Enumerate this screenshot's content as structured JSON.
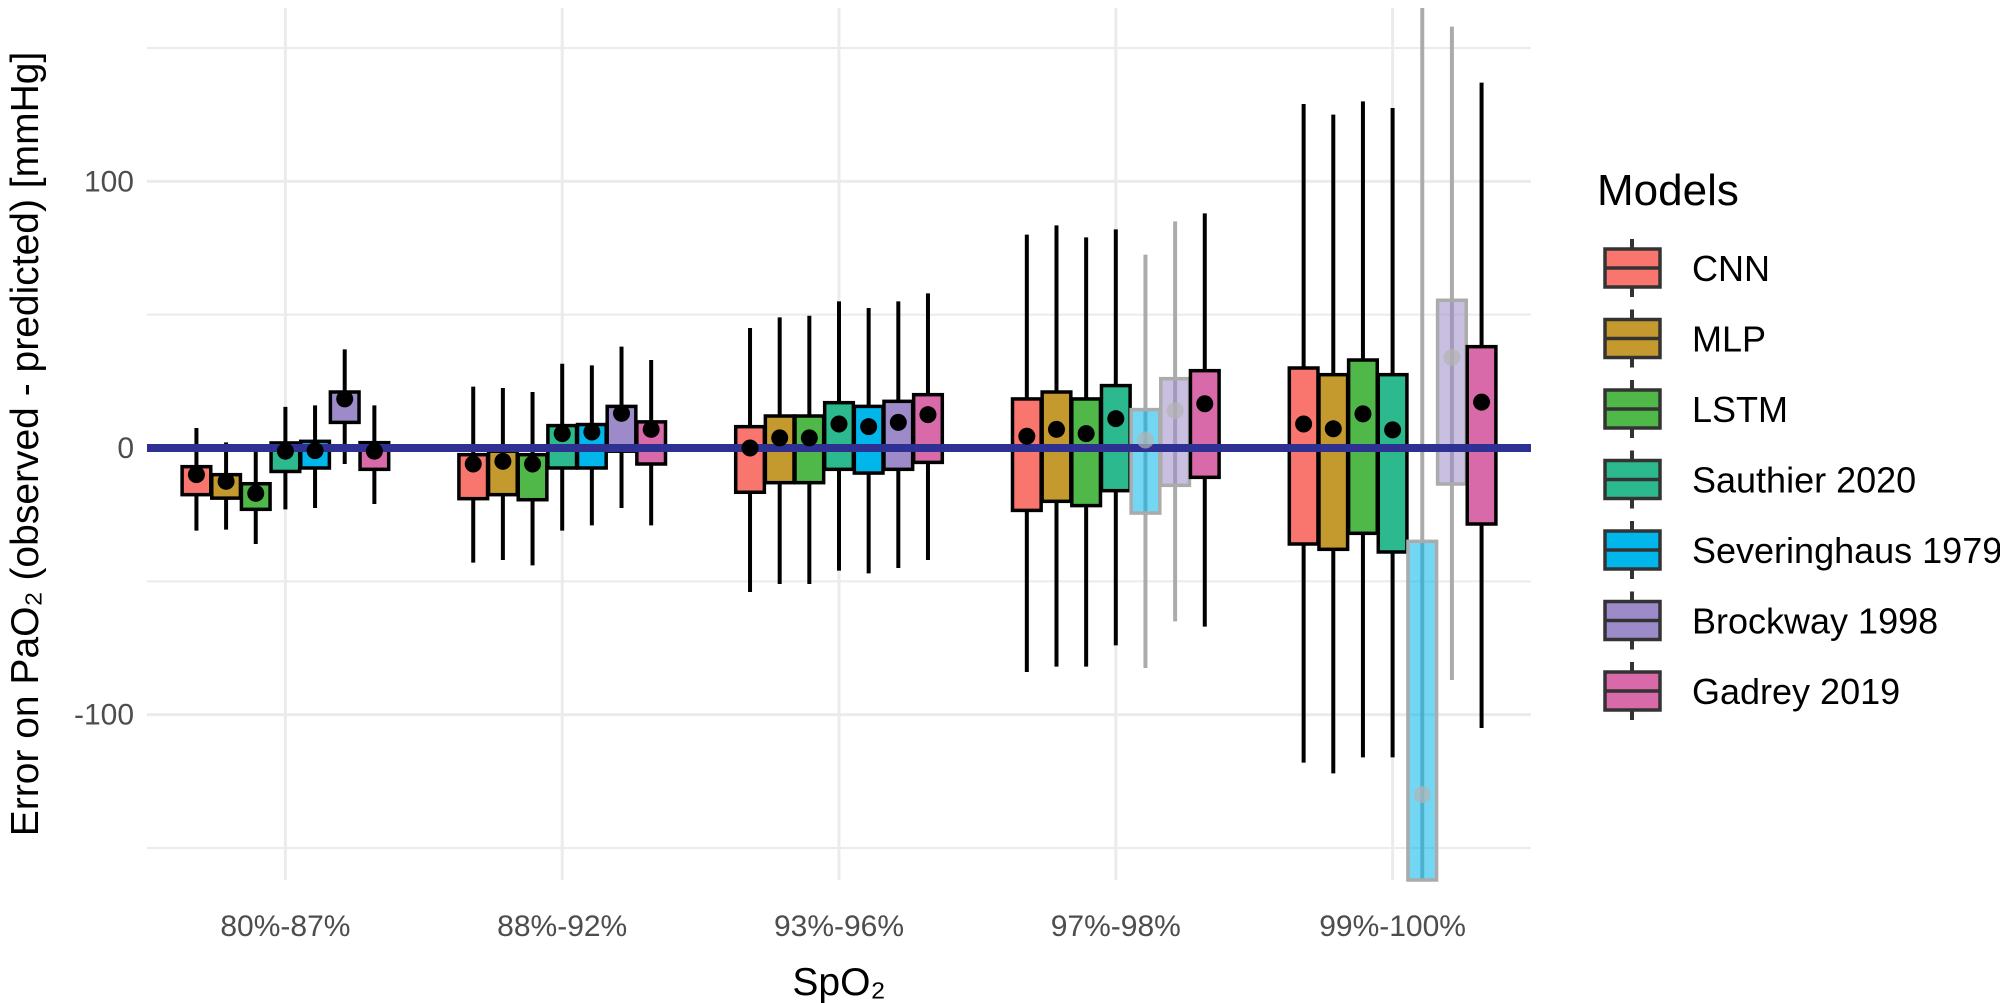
{
  "chart_data": {
    "type": "boxplot",
    "title": "",
    "xlabel": "SpO₂",
    "ylabel": "Error on PaO₂ (observed - predicted) [mmHg]",
    "ylim": [
      -162,
      165
    ],
    "yticks": [
      -100,
      0,
      100
    ],
    "grid": true,
    "reference_line": {
      "y": 0,
      "color": "#2e3192"
    },
    "legend": {
      "title": "Models",
      "placement": "right"
    },
    "categories": [
      "80%-87%",
      "88%-92%",
      "93%-96%",
      "97%-98%",
      "99%-100%"
    ],
    "stat_fields": [
      "low",
      "q1",
      "q3",
      "high",
      "mean"
    ],
    "series": [
      {
        "name": "CNN",
        "color": "#f8766d",
        "boxes": [
          [
            -31,
            -17.5,
            -7,
            7.5,
            -10
          ],
          [
            -43,
            -19,
            -2.5,
            23,
            -6
          ],
          [
            -54,
            -16.6,
            8,
            45,
            0
          ],
          [
            -84,
            -23.4,
            18.4,
            80,
            4.4
          ],
          [
            -118,
            -36,
            30,
            129,
            9
          ]
        ],
        "faded": [
          false,
          false,
          false,
          false,
          false
        ]
      },
      {
        "name": "MLP",
        "color": "#c49a2e",
        "boxes": [
          [
            -30.6,
            -18.8,
            -10,
            2.1,
            -12.5
          ],
          [
            -42,
            -17.5,
            -1.2,
            22.5,
            -5
          ],
          [
            -51,
            -13,
            12,
            49,
            3.8
          ],
          [
            -82,
            -20,
            21,
            83.5,
            7
          ],
          [
            -122,
            -38,
            27.5,
            125,
            7.2
          ]
        ],
        "faded": [
          false,
          false,
          false,
          false,
          false
        ]
      },
      {
        "name": "LSTM",
        "color": "#4fb848",
        "boxes": [
          [
            -36,
            -23,
            -13.4,
            -0.6,
            -17
          ],
          [
            -44,
            -19.4,
            -2.5,
            21,
            -6
          ],
          [
            -51,
            -13,
            12,
            49.6,
            3.8
          ],
          [
            -82,
            -21.6,
            18.4,
            79,
            5.4
          ],
          [
            -116,
            -32,
            33,
            130,
            12.8
          ]
        ],
        "faded": [
          false,
          false,
          false,
          false,
          false
        ]
      },
      {
        "name": "Sauthier 2020",
        "color": "#2db98e",
        "boxes": [
          [
            -23,
            -8.8,
            1.9,
            15.4,
            -1.2
          ],
          [
            -31,
            -7.5,
            8.4,
            31.6,
            5.4
          ],
          [
            -46,
            -8,
            17,
            55,
            9
          ],
          [
            -74,
            -16,
            23.4,
            82,
            11
          ],
          [
            -116,
            -39,
            27.5,
            127.5,
            6.8
          ]
        ],
        "faded": [
          false,
          false,
          false,
          false,
          false
        ]
      },
      {
        "name": "Severinghaus 1979",
        "color": "#00b6eb",
        "boxes": [
          [
            -22.5,
            -7.5,
            2.5,
            16,
            -1
          ],
          [
            -29,
            -7.5,
            8.8,
            31,
            6
          ],
          [
            -47,
            -9.4,
            15.6,
            52.5,
            8
          ],
          [
            -82.5,
            -24.4,
            14.4,
            72.5,
            3
          ],
          [
            -170,
            -170,
            -35,
            170,
            -130
          ]
        ],
        "faded": [
          false,
          false,
          false,
          true,
          true
        ]
      },
      {
        "name": "Brockway 1998",
        "color": "#9d8bc9",
        "boxes": [
          [
            -6,
            9.6,
            21,
            37,
            18.4
          ],
          [
            -22.5,
            -1.2,
            15.6,
            38,
            13
          ],
          [
            -45,
            -8,
            17.5,
            55,
            9.6
          ],
          [
            -65,
            -14,
            26,
            85,
            14
          ],
          [
            -87,
            -13.5,
            55.4,
            158,
            34
          ]
        ],
        "faded": [
          false,
          false,
          false,
          true,
          true
        ]
      },
      {
        "name": "Gadrey 2019",
        "color": "#d86aaa",
        "boxes": [
          [
            -21,
            -8,
            2,
            16,
            -1.2
          ],
          [
            -29,
            -6,
            9.8,
            33,
            7
          ],
          [
            -42,
            -5.4,
            20,
            58,
            12.5
          ],
          [
            -67,
            -11,
            29,
            88,
            16.6
          ],
          [
            -105,
            -28.5,
            38,
            137,
            17.2
          ]
        ],
        "faded": [
          false,
          false,
          false,
          false,
          false
        ]
      }
    ]
  }
}
